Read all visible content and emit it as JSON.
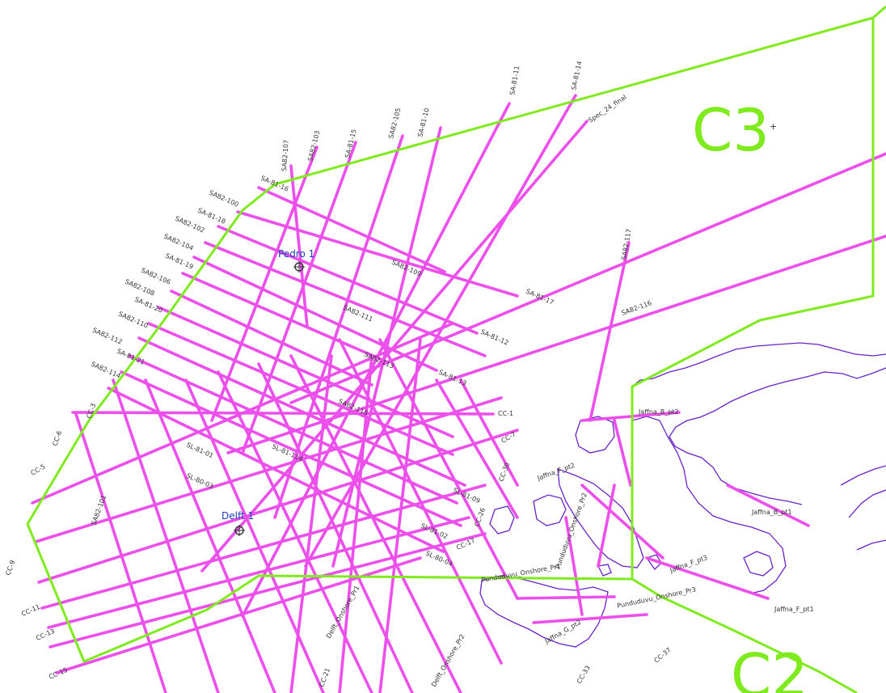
{
  "colors": {
    "seismic_line": "#ec4fec",
    "block_boundary": "#7fea1e",
    "coastline": "#6a22c9",
    "well_label": "#1b3fbf",
    "line_label": "#333333"
  },
  "blocks": [
    {
      "id": "c3",
      "label": "C3"
    },
    {
      "id": "c2",
      "label": "C2"
    }
  ],
  "wells": [
    {
      "id": "pedro",
      "label": "Pedro 1"
    },
    {
      "id": "delft",
      "label": "Delft 1"
    }
  ],
  "line_labels": [
    "SA-81-11",
    "SA-81-14",
    "Spec_24_final",
    "SA82-105",
    "SA-81-10",
    "SA-81-15",
    "SA82-103",
    "SA82-107",
    "SA-81-16",
    "SA82-100",
    "SA-81-18",
    "SA82-102",
    "SA82-104",
    "SA-81-19",
    "SA82-106",
    "SA-81-20",
    "SA82-108",
    "SA82-110",
    "SA82-112",
    "SA-81-21",
    "SA82-114",
    "SA82-109",
    "SA-81-17",
    "SA82-111",
    "SA82-113",
    "SA82-115",
    "SA82-117",
    "SA82-116",
    "SA-81-12",
    "SA-81-13",
    "CC-1",
    "CC-3",
    "CC-5",
    "CC-6",
    "CC-7",
    "CC-9",
    "CC-11",
    "CC-13",
    "CC-15",
    "CC-17",
    "CC-21",
    "CC-26",
    "CC-30",
    "CC-33",
    "CC-37",
    "SL-81-01",
    "SL-81-02",
    "SL-80-03",
    "SL-80-04",
    "SL-81-09",
    "SL-81-114",
    "SA82-101",
    "Jaffna_B_pt1",
    "Jaffna_B_pt2",
    "Jaffna_F_pt1",
    "Jaffna_F_pt2",
    "Jaffna_F_pt3",
    "Jaffna_G_pt2",
    "Punduduvu_Onshore_Pr1",
    "Punduduvu_Onshore_Pr2",
    "Punduduvu_Onshore_Pr3",
    "Delft_Onshore_Pr1",
    "Delft_Onshore_Pr2"
  ]
}
